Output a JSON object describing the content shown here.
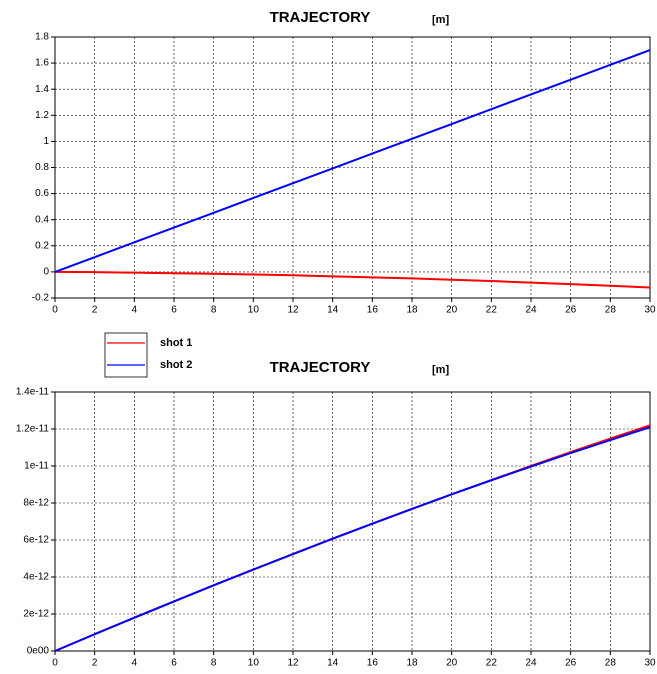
{
  "chart_data": [
    {
      "type": "line",
      "title": "TRAJECTORY",
      "unit_label": "[m]",
      "x": [
        0,
        2,
        4,
        6,
        8,
        10,
        12,
        14,
        16,
        18,
        20,
        22,
        24,
        26,
        28,
        30
      ],
      "series": [
        {
          "name": "shot 1",
          "color": "#ff0000",
          "values": [
            0,
            -0.002,
            -0.006,
            -0.01,
            -0.014,
            -0.02,
            -0.026,
            -0.034,
            -0.042,
            -0.05,
            -0.06,
            -0.07,
            -0.082,
            -0.094,
            -0.106,
            -0.12
          ]
        },
        {
          "name": "shot 2",
          "color": "#0000ff",
          "values": [
            0,
            0.113,
            0.227,
            0.34,
            0.453,
            0.567,
            0.68,
            0.793,
            0.907,
            1.02,
            1.133,
            1.247,
            1.36,
            1.473,
            1.587,
            1.7
          ]
        }
      ],
      "xlim": [
        0,
        30
      ],
      "xticks": [
        0,
        2,
        4,
        6,
        8,
        10,
        12,
        14,
        16,
        18,
        20,
        22,
        24,
        26,
        28,
        30
      ],
      "ylim": [
        -0.2,
        1.8
      ],
      "yticks": [
        -0.2,
        0,
        0.2,
        0.4,
        0.6,
        0.8,
        1,
        1.2,
        1.4,
        1.6,
        1.8
      ],
      "grid": true
    },
    {
      "type": "line",
      "title": "TRAJECTORY",
      "unit_label": "[m]",
      "x": [
        0,
        2,
        4,
        6,
        8,
        10,
        12,
        14,
        16,
        18,
        20,
        22,
        24,
        26,
        28,
        30
      ],
      "series": [
        {
          "color": "#ff0000",
          "values": [
            0,
            9.07e-13,
            1.8e-12,
            2.68e-12,
            3.55e-12,
            4.4e-12,
            5.24e-12,
            6.07e-12,
            6.88e-12,
            7.68e-12,
            8.47e-12,
            9.24e-12,
            1e-11,
            1.075e-11,
            1.148e-11,
            1.22e-11
          ]
        },
        {
          "color": "#0000ff",
          "values": [
            0,
            9.07e-13,
            1.8e-12,
            2.68e-12,
            3.55e-12,
            4.4e-12,
            5.24e-12,
            6.07e-12,
            6.88e-12,
            7.68e-12,
            8.47e-12,
            9.23e-12,
            9.97e-12,
            1.07e-11,
            1.14e-11,
            1.21e-11
          ]
        }
      ],
      "xlim": [
        0,
        30
      ],
      "xticks": [
        0,
        2,
        4,
        6,
        8,
        10,
        12,
        14,
        16,
        18,
        20,
        22,
        24,
        26,
        28,
        30
      ],
      "ylim": [
        0,
        1.4e-11
      ],
      "yticks": [
        {
          "value": 0,
          "label": "0e00"
        },
        {
          "value": 2e-12,
          "label": "2e-12"
        },
        {
          "value": 4e-12,
          "label": "4e-12"
        },
        {
          "value": 6e-12,
          "label": "6e-12"
        },
        {
          "value": 8e-12,
          "label": "8e-12"
        },
        {
          "value": 1e-11,
          "label": "1e-11"
        },
        {
          "value": 1.2e-11,
          "label": "1.2e-11"
        },
        {
          "value": 1.4e-11,
          "label": "1.4e-11"
        }
      ],
      "grid": true
    }
  ]
}
